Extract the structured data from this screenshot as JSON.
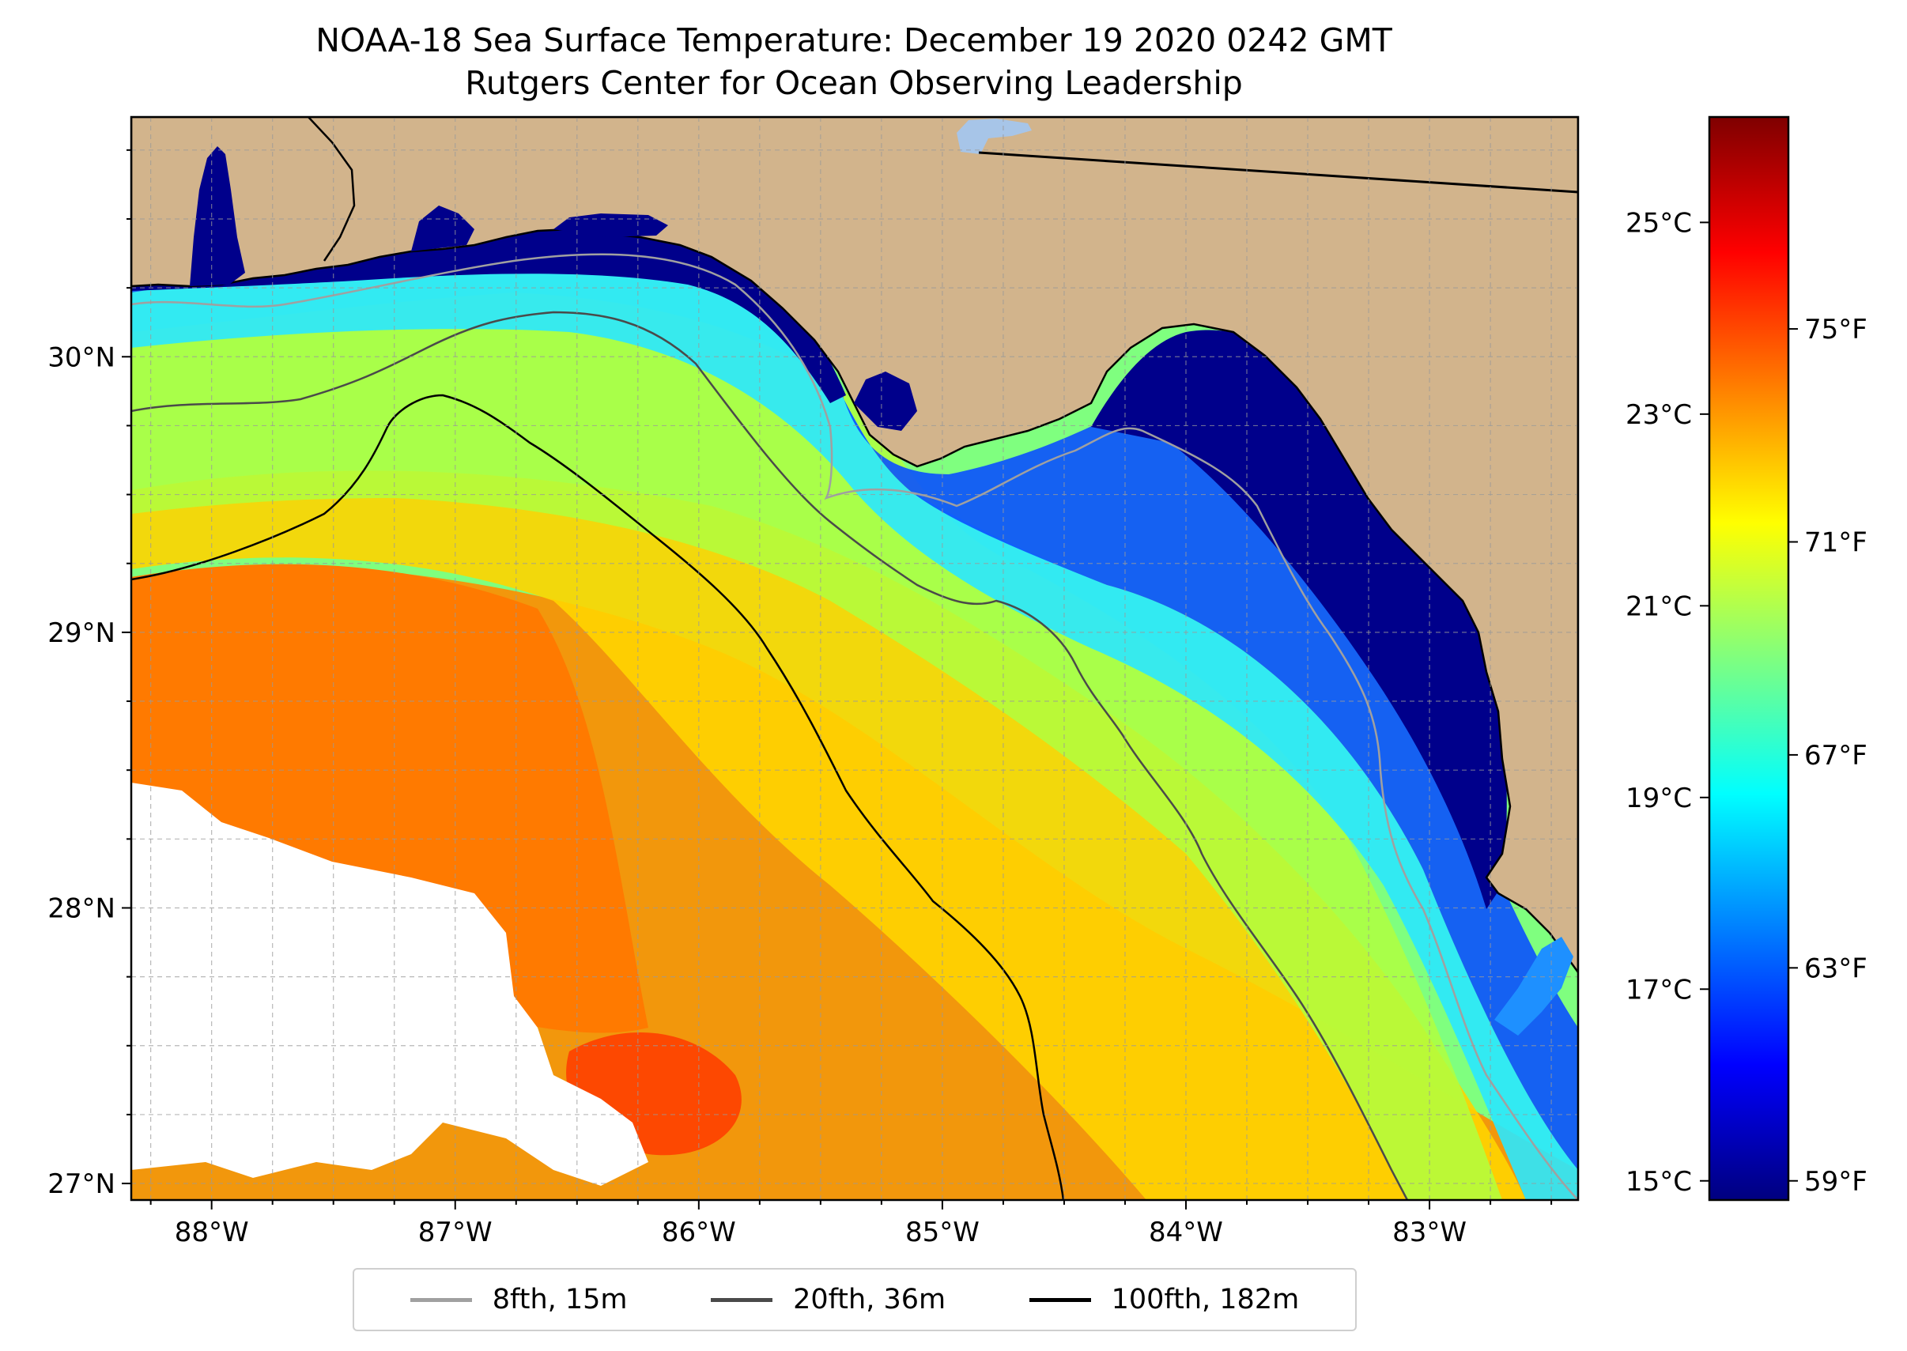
{
  "title": "NOAA-18 Sea Surface Temperature: December 19 2020 0242 GMT",
  "subtitle": "Rutgers Center for Ocean Observing Leadership",
  "colors": {
    "land": "#d2b48c",
    "lake": "#a7c5e8",
    "no_data": "#ffffff",
    "isobath_8fth": "#a0a0a0",
    "isobath_20fth": "#4a4a4a",
    "isobath_100fth": "#000000",
    "gridline": "#9a9a9a",
    "colormap": [
      "#00007f",
      "#0000ff",
      "#007fff",
      "#00ffff",
      "#7fff7f",
      "#ffff00",
      "#ff7f00",
      "#ff0000",
      "#7f0000"
    ]
  },
  "map": {
    "lon_range": [
      -88.33,
      -82.39
    ],
    "lat_range": [
      26.94,
      30.87
    ],
    "lon_ticks": [
      {
        "value": -88,
        "label": "88°W"
      },
      {
        "value": -87,
        "label": "87°W"
      },
      {
        "value": -86,
        "label": "86°W"
      },
      {
        "value": -85,
        "label": "85°W"
      },
      {
        "value": -84,
        "label": "84°W"
      },
      {
        "value": -83,
        "label": "83°W"
      }
    ],
    "lat_ticks": [
      {
        "value": 27,
        "label": "27°N"
      },
      {
        "value": 28,
        "label": "28°N"
      },
      {
        "value": 29,
        "label": "29°N"
      },
      {
        "value": 30,
        "label": "30°N"
      }
    ],
    "grid_step_deg": 0.25
  },
  "colorbar": {
    "celsius_range": [
      14.8,
      26.1
    ],
    "celsius_ticks": [
      {
        "value": 15,
        "label": "15°C"
      },
      {
        "value": 17,
        "label": "17°C"
      },
      {
        "value": 19,
        "label": "19°C"
      },
      {
        "value": 21,
        "label": "21°C"
      },
      {
        "value": 23,
        "label": "23°C"
      },
      {
        "value": 25,
        "label": "25°C"
      }
    ],
    "fahrenheit_ticks": [
      {
        "value": 59,
        "label": "59°F"
      },
      {
        "value": 63,
        "label": "63°F"
      },
      {
        "value": 67,
        "label": "67°F"
      },
      {
        "value": 71,
        "label": "71°F"
      },
      {
        "value": 75,
        "label": "75°F"
      }
    ]
  },
  "legend": {
    "items": [
      {
        "label": "8fth, 15m",
        "color": "#a0a0a0"
      },
      {
        "label": "20fth, 36m",
        "color": "#4a4a4a"
      },
      {
        "label": "100fth, 182m",
        "color": "#000000"
      }
    ]
  }
}
